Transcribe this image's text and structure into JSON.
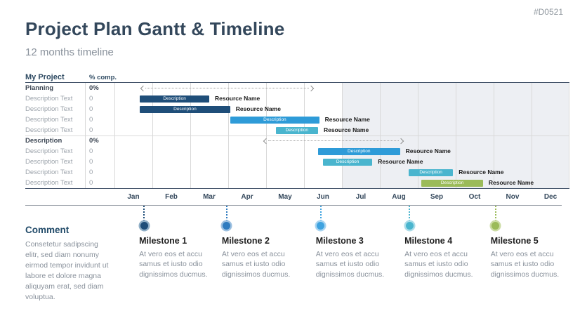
{
  "slide_id": "#D0521",
  "header": {
    "title": "Project Plan Gantt & Timeline",
    "subtitle": "12 months timeline"
  },
  "gantt": {
    "table": {
      "project_header": "My Project",
      "comp_header": "% comp."
    },
    "months": [
      "Jan",
      "Feb",
      "Mar",
      "Apr",
      "May",
      "Jun",
      "Jul",
      "Aug",
      "Sep",
      "Oct",
      "Nov",
      "Dec"
    ],
    "shaded_from_month": "Jul",
    "rows": [
      {
        "label": "Planning",
        "comp": "0%",
        "group": true,
        "item": {
          "kind": "span",
          "start": 0.7,
          "end": 5.25
        }
      },
      {
        "label": "Description Text",
        "comp": "0",
        "group": false,
        "item": {
          "kind": "bar",
          "start": 0.67,
          "end": 2.5,
          "color": "#1F4E79",
          "bar_label": "Description",
          "resource": "Resource Name"
        }
      },
      {
        "label": "Description Text",
        "comp": "0",
        "group": false,
        "item": {
          "kind": "bar",
          "start": 0.67,
          "end": 3.05,
          "color": "#1F4E79",
          "bar_label": "Description",
          "resource": "Resource Name"
        }
      },
      {
        "label": "Description Text",
        "comp": "0",
        "group": false,
        "item": {
          "kind": "bar",
          "start": 3.06,
          "end": 5.4,
          "color": "#2E9BD8",
          "bar_label": "Description",
          "resource": "Resource Name"
        }
      },
      {
        "label": "Description Text",
        "comp": "0",
        "group": false,
        "item": {
          "kind": "bar",
          "start": 4.25,
          "end": 5.37,
          "color": "#4AB5CE",
          "bar_label": "Description",
          "resource": "Resource Name"
        }
      },
      {
        "label": "Description",
        "comp": "0%",
        "group": true,
        "item": {
          "kind": "span",
          "start": 3.95,
          "end": 7.62
        }
      },
      {
        "label": "Description Text",
        "comp": "0",
        "group": false,
        "item": {
          "kind": "bar",
          "start": 5.37,
          "end": 7.53,
          "color": "#2E9BD8",
          "bar_label": "Description",
          "resource": "Resource Name"
        }
      },
      {
        "label": "Description Text",
        "comp": "0",
        "group": false,
        "item": {
          "kind": "bar",
          "start": 5.5,
          "end": 6.8,
          "color": "#4AB5CE",
          "bar_label": "Description",
          "resource": "Resource Name"
        }
      },
      {
        "label": "Description Text",
        "comp": "0",
        "group": false,
        "item": {
          "kind": "bar",
          "start": 7.76,
          "end": 8.93,
          "color": "#4AB5CE",
          "bar_label": "Description",
          "resource": "Resource Name"
        }
      },
      {
        "label": "Description Text",
        "comp": "0",
        "group": false,
        "item": {
          "kind": "bar",
          "start": 8.1,
          "end": 9.72,
          "color": "#9BBB59",
          "bar_label": "Description",
          "resource": "Resource Name"
        }
      }
    ]
  },
  "comment": {
    "heading": "Comment",
    "body": "Consetetur sadipscing elitr, sed diam nonumy eirmod tempor invidunt ut labore et dolore magna aliquyam erat, sed diam voluptua."
  },
  "milestones": [
    {
      "title": "Milestone 1",
      "body": "At vero eos et accu samus et iusto odio dignissimos ducmus.",
      "month": 0.78,
      "color": "#1F4E79",
      "ring": "#8FAEC6"
    },
    {
      "title": "Milestone 2",
      "body": "At vero eos et accu samus et iusto odio dignissimos ducmus.",
      "month": 2.96,
      "color": "#2E7BBF",
      "ring": "#9CC0E0"
    },
    {
      "title": "Milestone 3",
      "body": "At vero eos et accu samus et iusto odio dignissimos ducmus.",
      "month": 5.44,
      "color": "#3FA3E0",
      "ring": "#A8D4F0"
    },
    {
      "title": "Milestone 4",
      "body": "At vero eos et accu samus et iusto odio dignissimos ducmus.",
      "month": 7.78,
      "color": "#4AB5CE",
      "ring": "#ABDCE8"
    },
    {
      "title": "Milestone 5",
      "body": "At vero eos et accu samus et iusto odio dignissimos ducmus.",
      "month": 10.05,
      "color": "#9BBB59",
      "ring": "#CCDCA4"
    }
  ],
  "colors": {
    "navy": "#1F4E79",
    "blue": "#2E9BD8",
    "cyan": "#4AB5CE",
    "green": "#9BBB59",
    "title": "#33475B",
    "gray_text": "#8A929C",
    "dark_line": "#44546A",
    "grid": "#D9D9D9",
    "shade": "#EDEFF3"
  },
  "chart_data": {
    "type": "bar",
    "subtype": "gantt-timeline",
    "title": "Project Plan Gantt & Timeline",
    "subtitle": "12 months timeline",
    "x_axis": {
      "unit": "month",
      "ticks": [
        "Jan",
        "Feb",
        "Mar",
        "Apr",
        "May",
        "Jun",
        "Jul",
        "Aug",
        "Sep",
        "Oct",
        "Nov",
        "Dec"
      ],
      "range": [
        0,
        12
      ],
      "shaded_range": [
        6,
        12
      ]
    },
    "groups": [
      {
        "name": "Planning",
        "percent_complete": "0%",
        "span_months": [
          0.7,
          5.25
        ]
      },
      {
        "name": "Description",
        "percent_complete": "0%",
        "span_months": [
          3.95,
          7.62
        ]
      }
    ],
    "tasks": [
      {
        "group": "Planning",
        "name": "Description Text",
        "percent_complete": "0",
        "bar_label": "Description",
        "resource": "Resource Name",
        "start": 0.67,
        "end": 2.5,
        "color": "#1F4E79"
      },
      {
        "group": "Planning",
        "name": "Description Text",
        "percent_complete": "0",
        "bar_label": "Description",
        "resource": "Resource Name",
        "start": 0.67,
        "end": 3.05,
        "color": "#1F4E79"
      },
      {
        "group": "Planning",
        "name": "Description Text",
        "percent_complete": "0",
        "bar_label": "Description",
        "resource": "Resource Name",
        "start": 3.06,
        "end": 5.4,
        "color": "#2E9BD8"
      },
      {
        "group": "Planning",
        "name": "Description Text",
        "percent_complete": "0",
        "bar_label": "Description",
        "resource": "Resource Name",
        "start": 4.25,
        "end": 5.37,
        "color": "#4AB5CE"
      },
      {
        "group": "Description",
        "name": "Description Text",
        "percent_complete": "0",
        "bar_label": "Description",
        "resource": "Resource Name",
        "start": 5.37,
        "end": 7.53,
        "color": "#2E9BD8"
      },
      {
        "group": "Description",
        "name": "Description Text",
        "percent_complete": "0",
        "bar_label": "Description",
        "resource": "Resource Name",
        "start": 5.5,
        "end": 6.8,
        "color": "#4AB5CE"
      },
      {
        "group": "Description",
        "name": "Description Text",
        "percent_complete": "0",
        "bar_label": "Description",
        "resource": "Resource Name",
        "start": 7.76,
        "end": 8.93,
        "color": "#4AB5CE"
      },
      {
        "group": "Description",
        "name": "Description Text",
        "percent_complete": "0",
        "bar_label": "Description",
        "resource": "Resource Name",
        "start": 8.1,
        "end": 9.72,
        "color": "#9BBB59"
      }
    ],
    "milestones": [
      {
        "name": "Milestone 1",
        "month": 0.78,
        "color": "#1F4E79"
      },
      {
        "name": "Milestone 2",
        "month": 2.96,
        "color": "#2E7BBF"
      },
      {
        "name": "Milestone 3",
        "month": 5.44,
        "color": "#3FA3E0"
      },
      {
        "name": "Milestone 4",
        "month": 7.78,
        "color": "#4AB5CE"
      },
      {
        "name": "Milestone 5",
        "month": 10.05,
        "color": "#9BBB59"
      }
    ],
    "legend": "none",
    "grid": "vertical month gridlines"
  }
}
